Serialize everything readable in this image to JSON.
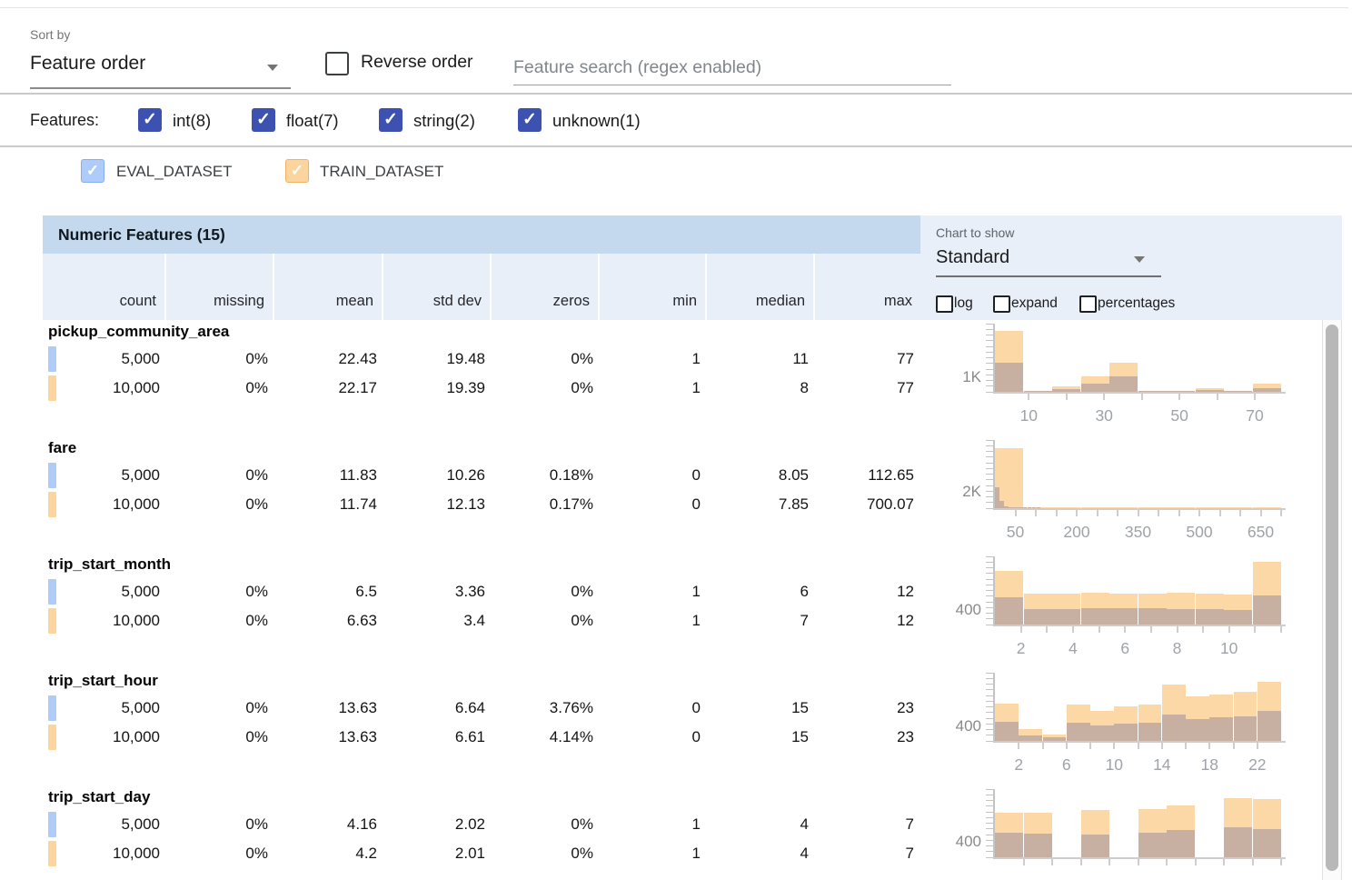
{
  "colors": {
    "accent_indigo": "#3d51b1",
    "eval_blue": "#aecbfa",
    "eval_blue_border": "#84aef2",
    "train_orange": "#fbd49e",
    "train_orange_border": "#f1b267",
    "hist_train": "#fbd8a6",
    "hist_overlap": "#c7b0a2",
    "table_header_bg": "#c5d9ee",
    "panel_bg": "#e9eff8"
  },
  "toolbar": {
    "sort_by_label": "Sort by",
    "sort_by_value": "Feature order",
    "reverse_order_label": "Reverse order",
    "search_placeholder": "Feature search (regex enabled)"
  },
  "filters": {
    "label": "Features:",
    "types": [
      {
        "label": "int(8)",
        "checked": true
      },
      {
        "label": "float(7)",
        "checked": true
      },
      {
        "label": "string(2)",
        "checked": true
      },
      {
        "label": "unknown(1)",
        "checked": true
      }
    ]
  },
  "datasets": [
    {
      "name": "EVAL_DATASET",
      "checked": true
    },
    {
      "name": "TRAIN_DATASET",
      "checked": true
    }
  ],
  "table": {
    "title": "Numeric Features (15)",
    "columns": [
      "count",
      "missing",
      "mean",
      "std dev",
      "zeros",
      "min",
      "median",
      "max"
    ]
  },
  "chart_controls": {
    "label": "Chart to show",
    "selected": "Standard",
    "toggles": [
      {
        "label": "log",
        "checked": false
      },
      {
        "label": "expand",
        "checked": false
      },
      {
        "label": "percentages",
        "checked": false
      }
    ]
  },
  "features": [
    {
      "name": "pickup_community_area",
      "rows": [
        {
          "dataset": "EVAL_DATASET",
          "cells": [
            "5,000",
            "0%",
            "22.43",
            "19.48",
            "0%",
            "1",
            "11",
            "77"
          ]
        },
        {
          "dataset": "TRAIN_DATASET",
          "cells": [
            "10,000",
            "0%",
            "22.17",
            "19.39",
            "0%",
            "1",
            "8",
            "77"
          ]
        }
      ],
      "chart": {
        "type": "histogram",
        "ylabel": "1K",
        "ylabel_value": 1000,
        "ymax": 4700,
        "xmin": 1,
        "xmax": 77,
        "ticks": {
          "start": 10,
          "step": 10,
          "end": 70
        },
        "xtick_labels": [
          "10",
          "30",
          "50",
          "70"
        ],
        "train": {
          "bin_start": 1,
          "bin_width": 7.6,
          "counts": [
            4200,
            60,
            380,
            1060,
            2000,
            70,
            50,
            260,
            50,
            560
          ]
        },
        "eval": {
          "bin_start": 1,
          "bin_width": 7.6,
          "counts": [
            2000,
            30,
            190,
            560,
            1060,
            40,
            25,
            130,
            25,
            270
          ]
        }
      }
    },
    {
      "name": "fare",
      "rows": [
        {
          "dataset": "EVAL_DATASET",
          "cells": [
            "5,000",
            "0%",
            "11.83",
            "10.26",
            "0.18%",
            "0",
            "8.05",
            "112.65"
          ]
        },
        {
          "dataset": "TRAIN_DATASET",
          "cells": [
            "10,000",
            "0%",
            "11.74",
            "12.13",
            "0.17%",
            "0",
            "7.85",
            "700.07"
          ]
        }
      ],
      "chart": {
        "type": "histogram",
        "ylabel": "2K",
        "ylabel_value": 2000,
        "ymax": 8333,
        "xmin": 0,
        "xmax": 700,
        "ticks": {
          "start": 50,
          "step": 50,
          "end": 700
        },
        "xtick_labels": [
          "50",
          "200",
          "350",
          "500",
          "650"
        ],
        "train": {
          "bin_start": 0,
          "bin_width": 70,
          "counts": [
            7300,
            25,
            8,
            4,
            2,
            2,
            1,
            1,
            1,
            2
          ]
        },
        "eval": {
          "bin_start": 0,
          "bin_width": 11.27,
          "counts": [
            2550,
            900,
            280,
            120,
            50,
            25,
            12,
            6,
            3,
            3
          ]
        }
      }
    },
    {
      "name": "trip_start_month",
      "rows": [
        {
          "dataset": "EVAL_DATASET",
          "cells": [
            "5,000",
            "0%",
            "6.5",
            "3.36",
            "0%",
            "1",
            "6",
            "12"
          ]
        },
        {
          "dataset": "TRAIN_DATASET",
          "cells": [
            "10,000",
            "0%",
            "6.63",
            "3.4",
            "0%",
            "1",
            "7",
            "12"
          ]
        }
      ],
      "chart": {
        "type": "histogram",
        "ylabel": "400",
        "ylabel_value": 400,
        "ymax": 1875,
        "xmin": 1,
        "xmax": 12,
        "ticks": {
          "start": 2,
          "step": 1,
          "end": 12
        },
        "xtick_labels": [
          "2",
          "4",
          "6",
          "8",
          "10"
        ],
        "train": {
          "bin_start": 1,
          "bin_width": 1.1,
          "counts": [
            1470,
            845,
            860,
            880,
            860,
            850,
            880,
            860,
            830,
            1730
          ]
        },
        "eval": {
          "bin_start": 1,
          "bin_width": 1.1,
          "counts": [
            760,
            420,
            430,
            445,
            460,
            450,
            430,
            420,
            400,
            790
          ]
        }
      }
    },
    {
      "name": "trip_start_hour",
      "rows": [
        {
          "dataset": "EVAL_DATASET",
          "cells": [
            "5,000",
            "0%",
            "13.63",
            "6.64",
            "3.76%",
            "0",
            "15",
            "23"
          ]
        },
        {
          "dataset": "TRAIN_DATASET",
          "cells": [
            "10,000",
            "0%",
            "13.63",
            "6.61",
            "4.14%",
            "0",
            "15",
            "23"
          ]
        }
      ],
      "chart": {
        "type": "histogram",
        "ylabel": "400",
        "ylabel_value": 400,
        "ymax": 1875,
        "xmin": 0,
        "xmax": 24,
        "ticks": {
          "start": 2,
          "step": 2,
          "end": 22
        },
        "xtick_labels": [
          "2",
          "6",
          "10",
          "14",
          "18",
          "22"
        ],
        "train": {
          "bin_start": 0,
          "bin_width": 2,
          "counts": [
            1030,
            330,
            175,
            990,
            830,
            960,
            1000,
            1550,
            1230,
            1280,
            1340,
            1630
          ]
        },
        "eval": {
          "bin_start": 0,
          "bin_width": 2,
          "counts": [
            525,
            150,
            110,
            510,
            425,
            475,
            500,
            735,
            610,
            640,
            670,
            820
          ]
        }
      }
    },
    {
      "name": "trip_start_day",
      "rows": [
        {
          "dataset": "EVAL_DATASET",
          "cells": [
            "5,000",
            "0%",
            "4.16",
            "2.02",
            "0%",
            "1",
            "4",
            "7"
          ]
        },
        {
          "dataset": "TRAIN_DATASET",
          "cells": [
            "10,000",
            "0%",
            "4.2",
            "2.01",
            "0%",
            "1",
            "4",
            "7"
          ]
        }
      ],
      "chart": {
        "type": "histogram",
        "ylabel": "400",
        "ylabel_value": 400,
        "ymax": 1800,
        "xmin": 1,
        "xmax": 7,
        "ticks": {
          "start": 1.6,
          "step": 0.6,
          "end": 7
        },
        "xtick_labels": [],
        "train": {
          "bin_start": 1,
          "bin_width": 0.6,
          "counts": [
            1180,
            1175,
            0,
            1245,
            0,
            1265,
            1375,
            0,
            1555,
            1530
          ]
        },
        "eval": {
          "bin_start": 1,
          "bin_width": 0.6,
          "counts": [
            645,
            620,
            0,
            600,
            0,
            645,
            710,
            0,
            800,
            755
          ]
        }
      }
    }
  ]
}
